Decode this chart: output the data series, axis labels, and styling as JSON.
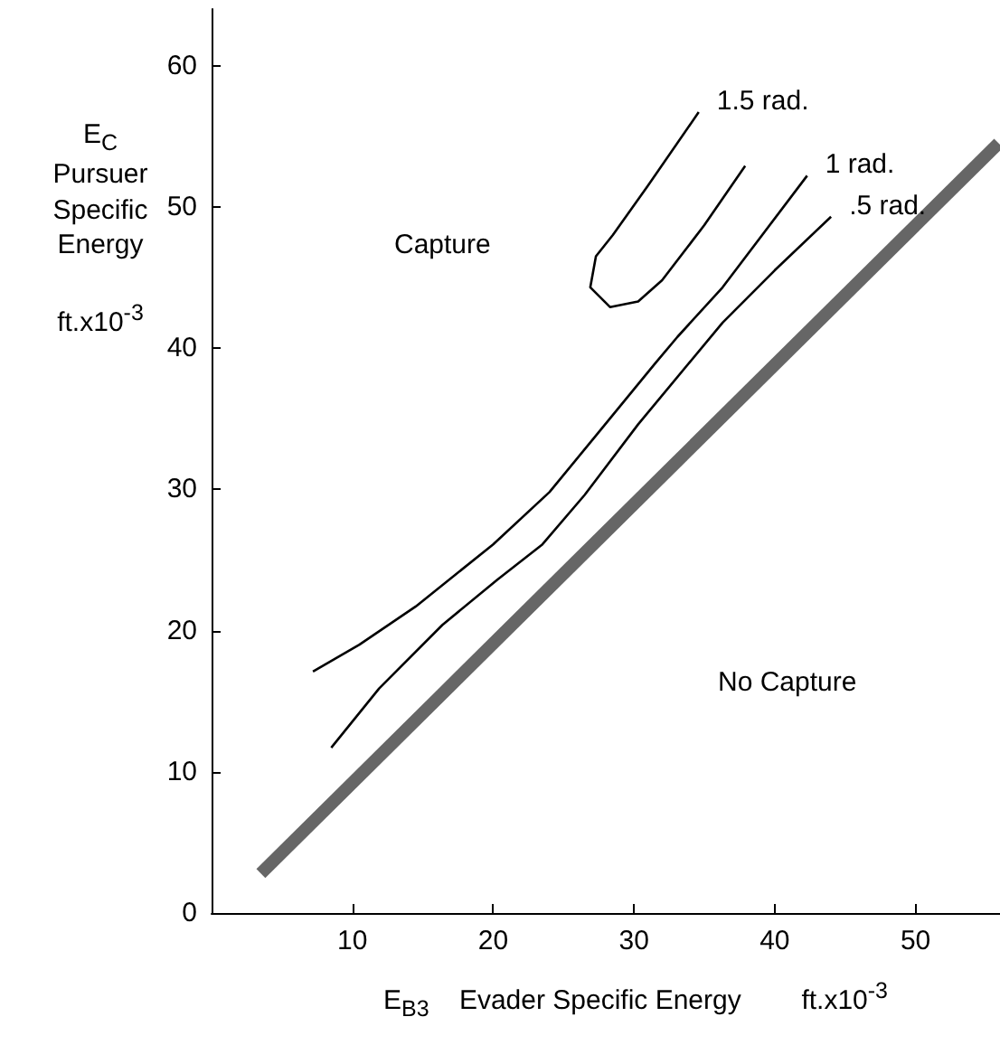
{
  "chart_data": {
    "type": "line",
    "xlabel": "E$_{B3}$    Evader Specific Energy        ft.x10$^{-3}$",
    "ylabel": "E$_{C}$\nPursuer\nSpecific\nEnergy\n\nft.x10$^{-3}$",
    "xlim": [
      0,
      56
    ],
    "ylim": [
      0,
      64
    ],
    "xticks": [
      10,
      20,
      30,
      40,
      50
    ],
    "yticks": [
      0,
      10,
      20,
      30,
      40,
      50,
      60
    ],
    "grid": false,
    "legend": false,
    "marker": "none",
    "line_style": "solid",
    "annotations": [
      "Capture",
      "No Capture"
    ],
    "series": [
      {
        "name": "1.5 rad.",
        "color": "#000000",
        "x": [
          37.9,
          35,
          32,
          30.3,
          28.3,
          26.9,
          27.3,
          28.5,
          31,
          34.6
        ],
        "values": [
          52.9,
          48.7,
          44.8,
          43.3,
          42.9,
          44.3,
          46.5,
          48,
          51.5,
          56.7
        ]
      },
      {
        "name": "1 rad.",
        "color": "#000000",
        "x": [
          7.2,
          10.5,
          14.5,
          20,
          24,
          27.3,
          31.5,
          33.1,
          36.3,
          42.3
        ],
        "values": [
          17.1,
          19,
          21.7,
          26.1,
          29.8,
          33.8,
          38.9,
          40.8,
          44.3,
          52.2
        ]
      },
      {
        "name": ".5 rad.",
        "color": "#000000",
        "x": [
          8.5,
          11.9,
          16.4,
          20.3,
          23.5,
          26.5,
          30.3,
          36.3,
          40,
          44
        ],
        "values": [
          11.7,
          15.9,
          20.4,
          23.6,
          26.1,
          29.6,
          34.6,
          41.8,
          45.5,
          49.3
        ]
      },
      {
        "color": "#666666",
        "x": [
          3.5,
          55.9
        ],
        "values": [
          2.8,
          54.5
        ]
      }
    ]
  }
}
